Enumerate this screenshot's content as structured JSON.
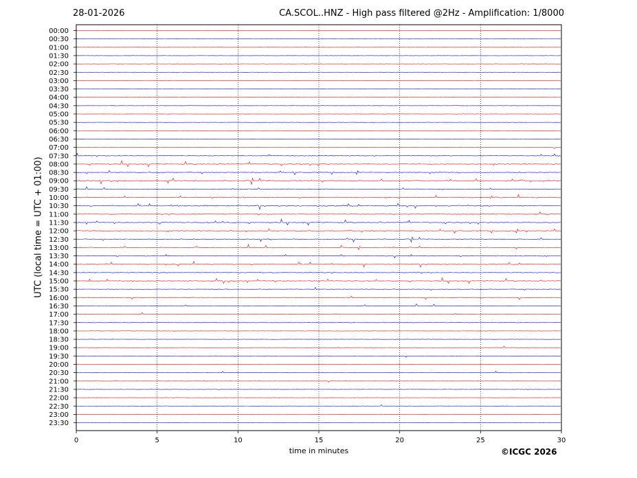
{
  "header": {
    "date": "28-01-2026",
    "title": "CA.SCOL..HNZ - High pass filtered @2Hz - Amplification: 1/8000"
  },
  "footer": {
    "copyright": "©ICGC 2026"
  },
  "chart_data": {
    "type": "line",
    "title": "CA.SCOL..HNZ - High pass filtered @2Hz - Amplification: 1/8000",
    "xlabel": "time in minutes",
    "ylabel": "UTC (local time = UTC + 01:00)",
    "xlim": [
      0,
      30
    ],
    "xticks": [
      "0",
      "5",
      "10",
      "15",
      "20",
      "25",
      "30"
    ],
    "grid": "vertical dotted at 5-minute intervals",
    "trace_colors": [
      "#ff0000",
      "#0000ff"
    ],
    "rows": [
      {
        "label": "00:00",
        "activity": 0
      },
      {
        "label": "00:30",
        "activity": 0
      },
      {
        "label": "01:00",
        "activity": 0
      },
      {
        "label": "01:30",
        "activity": 0
      },
      {
        "label": "02:00",
        "activity": 0
      },
      {
        "label": "02:30",
        "activity": 0
      },
      {
        "label": "03:00",
        "activity": 0
      },
      {
        "label": "03:30",
        "activity": 0
      },
      {
        "label": "04:00",
        "activity": 0
      },
      {
        "label": "04:30",
        "activity": 0
      },
      {
        "label": "05:00",
        "activity": 0
      },
      {
        "label": "05:30",
        "activity": 0
      },
      {
        "label": "06:00",
        "activity": 0
      },
      {
        "label": "06:30",
        "activity": 0.3
      },
      {
        "label": "07:00",
        "activity": 0.6
      },
      {
        "label": "07:30",
        "activity": 1.5
      },
      {
        "label": "08:00",
        "activity": 2.6
      },
      {
        "label": "08:30",
        "activity": 2
      },
      {
        "label": "09:00",
        "activity": 3
      },
      {
        "label": "09:30",
        "activity": 1
      },
      {
        "label": "10:00",
        "activity": 2
      },
      {
        "label": "10:30",
        "activity": 2.6
      },
      {
        "label": "11:00",
        "activity": 1.8
      },
      {
        "label": "11:30",
        "activity": 2.5
      },
      {
        "label": "12:00",
        "activity": 2.2
      },
      {
        "label": "12:30",
        "activity": 1.8
      },
      {
        "label": "13:00",
        "activity": 1.8
      },
      {
        "label": "13:30",
        "activity": 1.6
      },
      {
        "label": "14:00",
        "activity": 1.9
      },
      {
        "label": "14:30",
        "activity": 1.9
      },
      {
        "label": "15:00",
        "activity": 2.2
      },
      {
        "label": "15:30",
        "activity": 1
      },
      {
        "label": "16:00",
        "activity": 1
      },
      {
        "label": "16:30",
        "activity": 0.8
      },
      {
        "label": "17:00",
        "activity": 0.4
      },
      {
        "label": "17:30",
        "activity": 0.4
      },
      {
        "label": "18:00",
        "activity": 0.3
      },
      {
        "label": "18:30",
        "activity": 0.3
      },
      {
        "label": "19:00",
        "activity": 0.3
      },
      {
        "label": "19:30",
        "activity": 0.4
      },
      {
        "label": "20:00",
        "activity": 0
      },
      {
        "label": "20:30",
        "activity": 0.2
      },
      {
        "label": "21:00",
        "activity": 0.1
      },
      {
        "label": "21:30",
        "activity": 0.3
      },
      {
        "label": "22:00",
        "activity": 0.1
      },
      {
        "label": "22:30",
        "activity": 0.2
      },
      {
        "label": "23:00",
        "activity": 0.1
      },
      {
        "label": "23:30",
        "activity": 0.2
      }
    ]
  }
}
